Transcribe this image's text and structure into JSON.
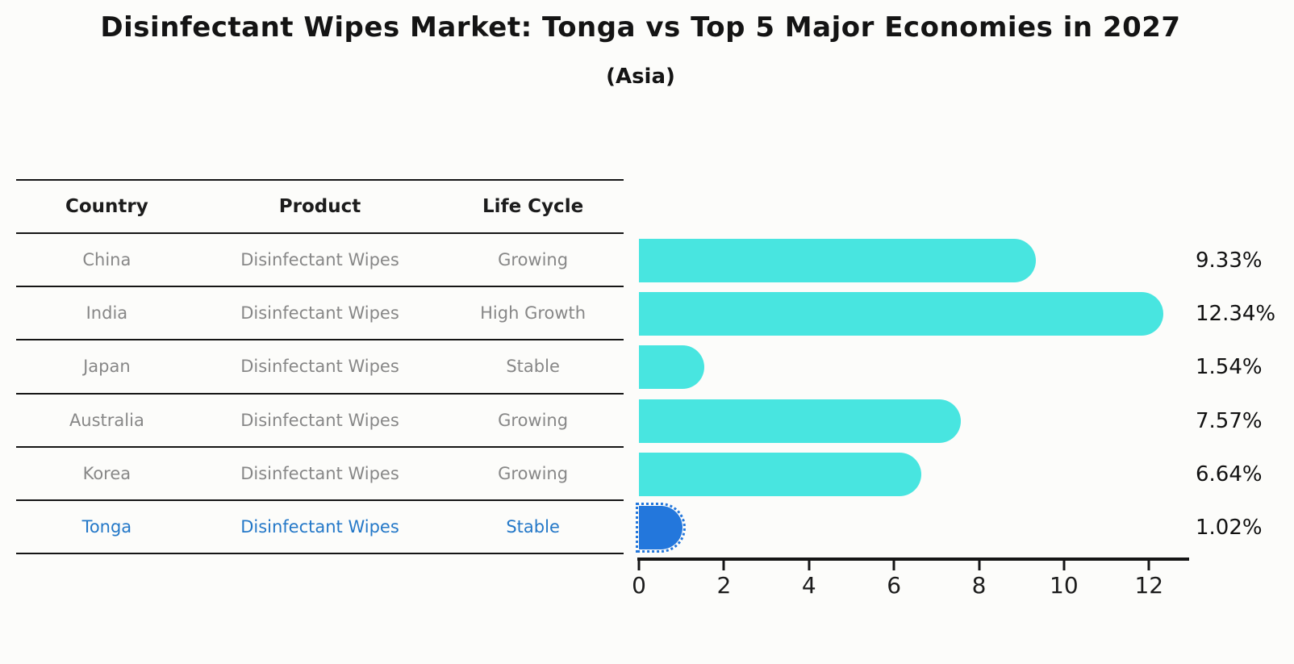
{
  "title": "Disinfectant Wipes Market: Tonga vs Top 5 Major Economies in 2027",
  "subtitle": "(Asia)",
  "table": {
    "headers": {
      "country": "Country",
      "product": "Product",
      "life_cycle": "Life Cycle"
    },
    "rows": [
      {
        "country": "China",
        "product": "Disinfectant Wipes",
        "life_cycle": "Growing",
        "highlight": false
      },
      {
        "country": "India",
        "product": "Disinfectant Wipes",
        "life_cycle": "High Growth",
        "highlight": false
      },
      {
        "country": "Japan",
        "product": "Disinfectant Wipes",
        "life_cycle": "Stable",
        "highlight": false
      },
      {
        "country": "Australia",
        "product": "Disinfectant Wipes",
        "life_cycle": "Growing",
        "highlight": false
      },
      {
        "country": "Korea",
        "product": "Disinfectant Wipes",
        "life_cycle": "Growing",
        "highlight": false
      },
      {
        "country": "Tonga",
        "product": "Disinfectant Wipes",
        "life_cycle": "Stable",
        "highlight": true
      }
    ]
  },
  "chart_data": {
    "type": "bar",
    "orientation": "horizontal",
    "title": "Disinfectant Wipes Market: Tonga vs Top 5 Major Economies in 2027",
    "subtitle": "(Asia)",
    "categories": [
      "China",
      "India",
      "Japan",
      "Australia",
      "Korea",
      "Tonga"
    ],
    "values": [
      9.33,
      12.34,
      1.54,
      7.57,
      6.64,
      1.02
    ],
    "value_labels": [
      "9.33%",
      "12.34%",
      "1.54%",
      "7.57%",
      "6.64%",
      "1.02%"
    ],
    "unit": "%",
    "x_ticks": [
      0,
      2,
      4,
      6,
      8,
      10,
      12
    ],
    "xlim": [
      0,
      12.83
    ],
    "grid": false,
    "legend": false,
    "bar_color": "#48e5e0",
    "highlight_color": "#2377dc",
    "highlight_index": 5,
    "highlight_style": "dotted-outline"
  },
  "colors": {
    "background": "#fcfcfa",
    "title_text": "#141414",
    "table_header_text": "#1c1c1c",
    "table_body_text": "#878787",
    "highlight_text": "#2478c8",
    "axis": "#151515",
    "value_label_text": "#111111"
  }
}
